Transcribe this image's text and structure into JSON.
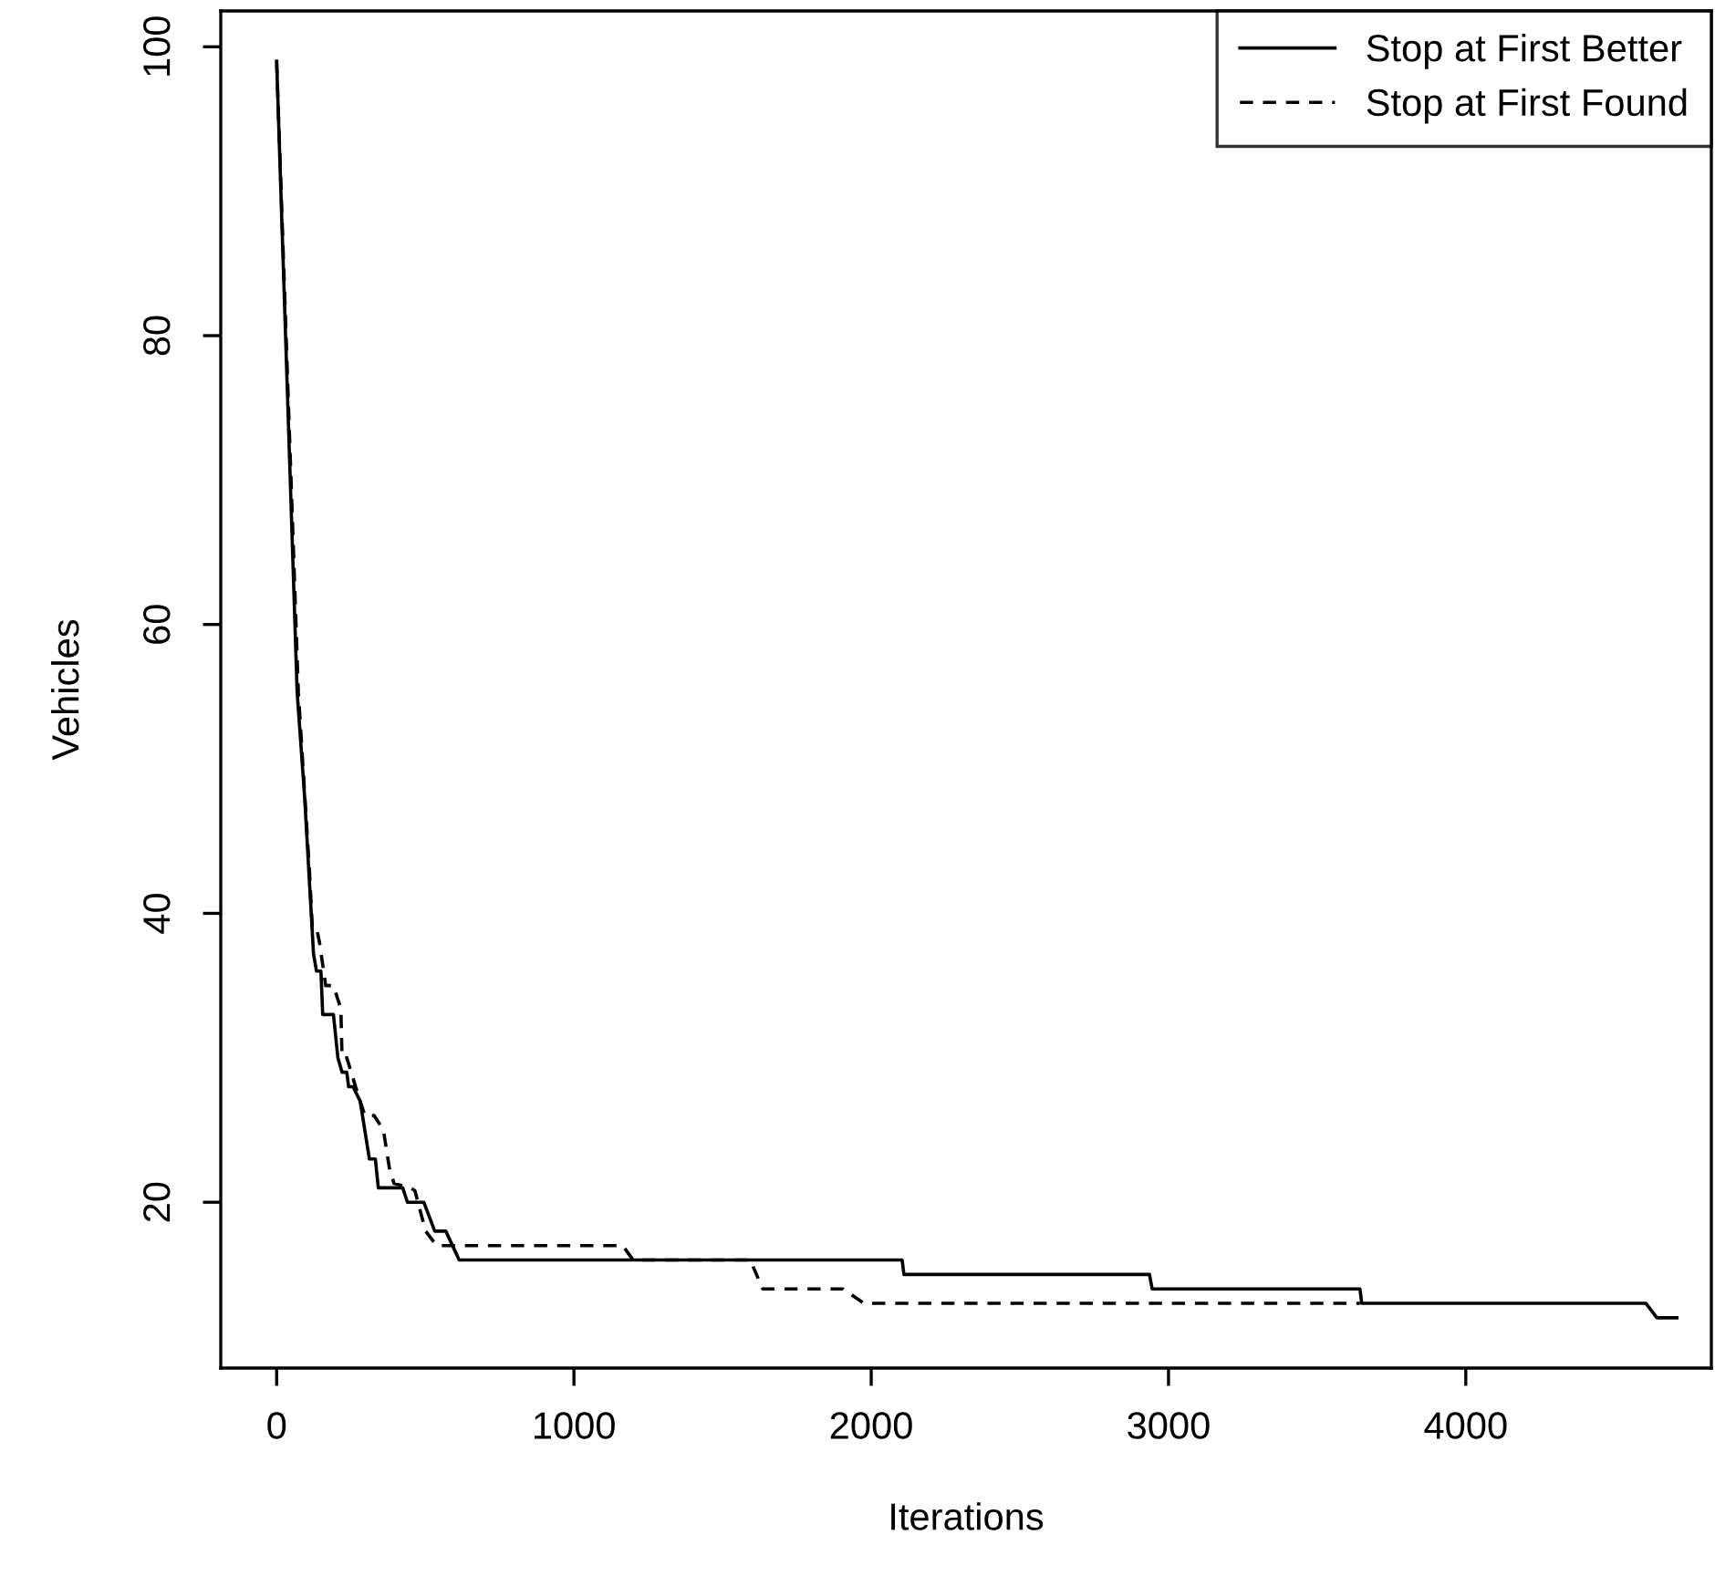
{
  "chart_data": {
    "type": "line",
    "xlabel": "Iterations",
    "ylabel": "Vehicles",
    "xlim": [
      -188,
      4826
    ],
    "ylim": [
      8.52,
      102.48
    ],
    "xticks": [
      0,
      1000,
      2000,
      3000,
      4000
    ],
    "yticks": [
      20,
      40,
      60,
      80,
      100
    ],
    "grid": false,
    "legend": "top right",
    "marker": "none",
    "series": [
      {
        "name": "Stop at First Better",
        "color": "#000000",
        "line_style": "solid",
        "x": [
          0,
          69,
          94,
          124,
          134,
          149,
          155,
          191,
          206,
          220,
          236,
          242,
          257,
          281,
          312,
          332,
          342,
          424,
          440,
          495,
          532,
          569,
          614,
          2104,
          2110,
          2936,
          2945,
          3644,
          3650,
          4606,
          4643,
          4710
        ],
        "values": [
          99,
          55.3,
          48.1,
          37.2,
          36,
          36,
          33,
          33,
          30,
          29,
          29,
          28,
          28,
          27,
          23,
          23,
          21,
          21,
          20,
          20,
          18,
          18,
          16,
          16,
          15,
          15,
          14,
          14,
          13,
          13,
          12,
          12
        ]
      },
      {
        "name": "Stop at First Found",
        "color": "#000000",
        "line_style": "dashed",
        "x": [
          0,
          73,
          110,
          120,
          134,
          144,
          165,
          191,
          216,
          220,
          236,
          273,
          297,
          328,
          359,
          379,
          395,
          450,
          465,
          501,
          538,
          1164,
          1199,
          1593,
          1635,
          1905,
          1975,
          3644
        ],
        "values": [
          99,
          55.3,
          43.1,
          39,
          39,
          38,
          35,
          35,
          33.4,
          30,
          30,
          27.5,
          26,
          26,
          25,
          22.4,
          21.3,
          21,
          20.8,
          18,
          17,
          17,
          16,
          16,
          14,
          14,
          13,
          13
        ]
      }
    ]
  }
}
